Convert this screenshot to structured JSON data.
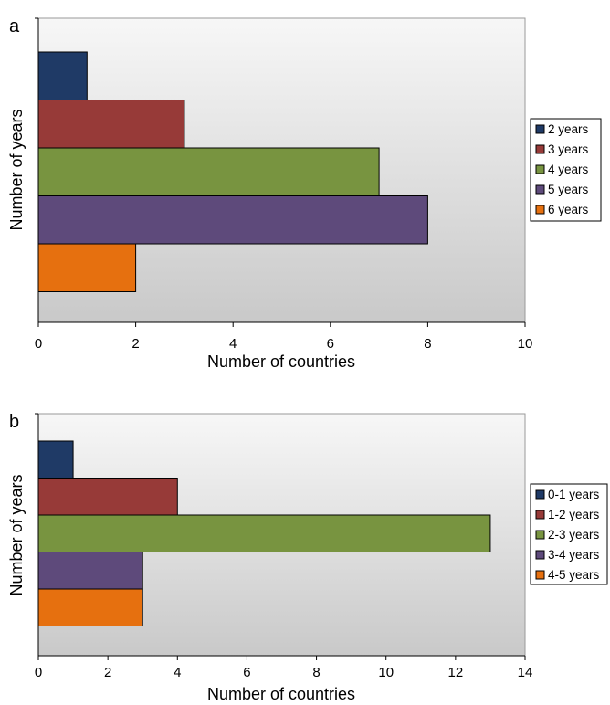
{
  "chart_data": [
    {
      "type": "bar",
      "orientation": "horizontal",
      "panel_label": "a",
      "xlabel": "Number of countries",
      "ylabel": "Number of years",
      "xlim": [
        0,
        10
      ],
      "xticks": [
        0,
        2,
        4,
        6,
        8,
        10
      ],
      "grid": false,
      "legend_position": "right",
      "series": [
        {
          "name": "2 years",
          "value": 1,
          "color": "#1f3a66"
        },
        {
          "name": "3 years",
          "value": 3,
          "color": "#973a38"
        },
        {
          "name": "4 years",
          "value": 7,
          "color": "#789440"
        },
        {
          "name": "5 years",
          "value": 8,
          "color": "#5e4a7b"
        },
        {
          "name": "6 years",
          "value": 2,
          "color": "#e6700f"
        }
      ]
    },
    {
      "type": "bar",
      "orientation": "horizontal",
      "panel_label": "b",
      "xlabel": "Number of countries",
      "ylabel": "Number of years",
      "xlim": [
        0,
        14
      ],
      "xticks": [
        0,
        2,
        4,
        6,
        8,
        10,
        12,
        14
      ],
      "grid": false,
      "legend_position": "right",
      "series": [
        {
          "name": "0-1 years",
          "value": 1,
          "color": "#1f3a66"
        },
        {
          "name": "1-2 years",
          "value": 4,
          "color": "#973a38"
        },
        {
          "name": "2-3 years",
          "value": 13,
          "color": "#789440"
        },
        {
          "name": "3-4 years",
          "value": 3,
          "color": "#5e4a7b"
        },
        {
          "name": "4-5 years",
          "value": 3,
          "color": "#e6700f"
        }
      ]
    }
  ]
}
